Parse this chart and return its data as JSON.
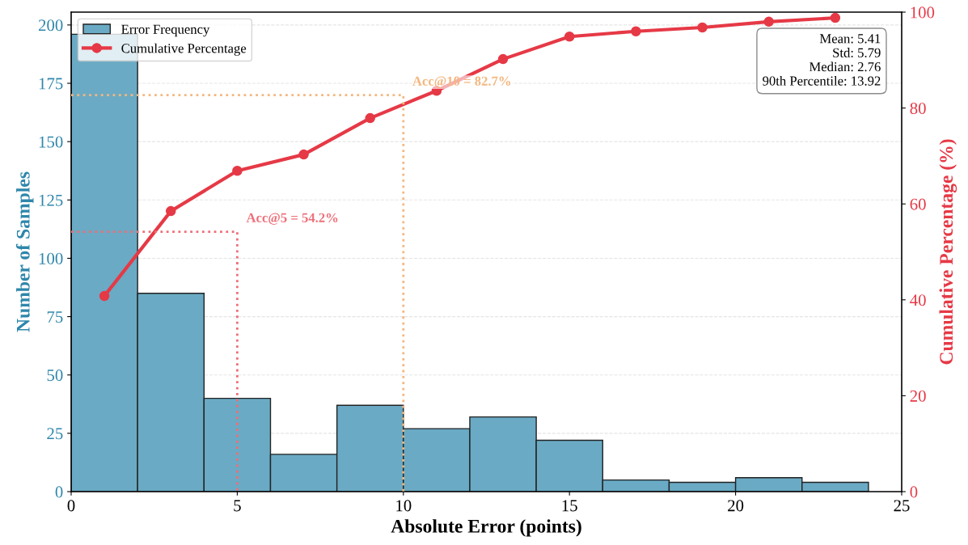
{
  "chart_data": {
    "type": "histogram",
    "xlabel": "Absolute Error (points)",
    "ylabel": "Number of Samples",
    "y2label": "Cumulative Percentage (%)",
    "bins": [
      0,
      2,
      4,
      6,
      8,
      10,
      12,
      14,
      16,
      18,
      20,
      22,
      24
    ],
    "series": [
      {
        "name": "Error Frequency",
        "color": "#6aaac4",
        "values": [
          196,
          85,
          40,
          16,
          37,
          27,
          32,
          22,
          5,
          4,
          6,
          4
        ]
      },
      {
        "name": "Cumulative Percentage",
        "type": "line",
        "axis": "y2",
        "color": "#e63946",
        "marker": "circle",
        "line_style": "solid",
        "x": [
          1,
          3,
          5,
          7,
          9,
          11,
          13,
          15,
          17,
          19,
          21,
          23
        ],
        "values": [
          40.8,
          58.5,
          66.9,
          70.3,
          77.9,
          83.6,
          90.2,
          94.9,
          96.0,
          96.8,
          98.0,
          98.8
        ]
      },
      {
        "type": "line",
        "axis": "y2",
        "color": "#ee6f79",
        "line_style": "dotted",
        "x": [
          0,
          5,
          5
        ],
        "values": [
          54.2,
          54.2,
          0
        ]
      },
      {
        "type": "line",
        "axis": "y2",
        "color": "#f4b77f",
        "line_style": "dotted",
        "x": [
          0,
          10,
          10
        ],
        "values": [
          82.7,
          82.7,
          0
        ]
      }
    ],
    "xlim": [
      0,
      25
    ],
    "xticks": [
      0,
      5,
      10,
      15,
      20,
      25
    ],
    "ylim": [
      0,
      205.5
    ],
    "yticks": [
      0,
      25,
      50,
      75,
      100,
      125,
      150,
      175,
      200
    ],
    "y2lim": [
      0,
      100
    ],
    "y2ticks": [
      0,
      20,
      40,
      60,
      80,
      100
    ],
    "grid": "y",
    "legend": "top left",
    "annotations": [
      "Acc@5 = 54.2%",
      "Acc@10 = 82.7%",
      "Mean: 5.41\nStd: 5.79\nMedian: 2.76\n90th Percentile: 13.92"
    ]
  }
}
